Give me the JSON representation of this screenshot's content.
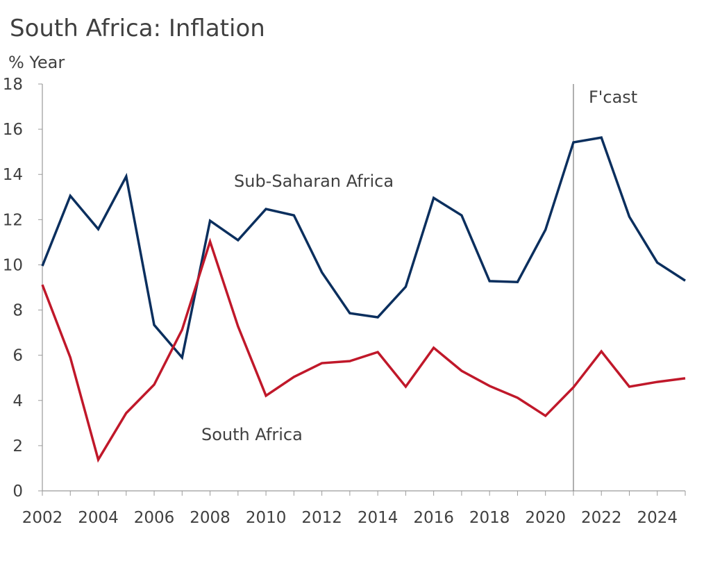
{
  "chart_data": {
    "type": "line",
    "title": "South Africa: Inflation",
    "ylabel": "% Year",
    "xlabel": "",
    "ylim": [
      0,
      18
    ],
    "yticks": [
      0,
      2,
      4,
      6,
      8,
      10,
      12,
      14,
      16,
      18
    ],
    "xlim": [
      2002,
      2025
    ],
    "xticks": [
      2002,
      2004,
      2006,
      2008,
      2010,
      2012,
      2014,
      2016,
      2018,
      2020,
      2022,
      2024
    ],
    "grid": false,
    "forecast_line": {
      "x": 2021,
      "label": "F'cast"
    },
    "x": [
      2002,
      2003,
      2004,
      2005,
      2006,
      2007,
      2008,
      2009,
      2010,
      2011,
      2012,
      2013,
      2014,
      2015,
      2016,
      2017,
      2018,
      2019,
      2020,
      2021,
      2022,
      2023,
      2024,
      2025
    ],
    "series": [
      {
        "name": "Sub-Saharan Africa",
        "color": "#0b2f5e",
        "values": [
          9.95,
          13.05,
          11.58,
          13.91,
          7.34,
          5.9,
          11.95,
          11.09,
          12.47,
          12.19,
          9.67,
          7.86,
          7.68,
          9.03,
          12.96,
          12.19,
          9.28,
          9.24,
          11.55,
          15.42,
          15.63,
          12.13,
          10.1,
          9.3
        ]
      },
      {
        "name": "South Africa",
        "color": "#c0182a",
        "values": [
          9.12,
          5.9,
          1.38,
          3.44,
          4.7,
          7.13,
          11.03,
          7.28,
          4.21,
          5.04,
          5.65,
          5.74,
          6.14,
          4.61,
          6.33,
          5.31,
          4.64,
          4.12,
          3.32,
          4.58,
          6.17,
          4.61,
          4.82,
          4.98
        ]
      }
    ]
  }
}
